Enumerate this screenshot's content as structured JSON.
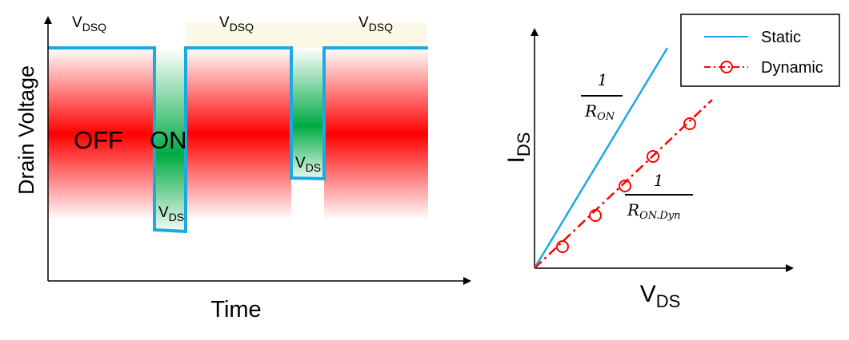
{
  "waveform": {
    "ylabel": "Drain Voltage",
    "xlabel": "Time",
    "vdsq_labels": [
      {
        "main": "V",
        "sub": "DSQ"
      },
      {
        "main": "V",
        "sub": "DSQ"
      },
      {
        "main": "V",
        "sub": "DSQ"
      }
    ],
    "vds_labels": [
      {
        "main": "V",
        "sub": "DS"
      },
      {
        "main": "V",
        "sub": "DS"
      }
    ],
    "state_off": "OFF",
    "state_on": "ON",
    "colors": {
      "trace": "#1ba9e2",
      "off_region": "#ff0000",
      "on_region": "#00aa44"
    }
  },
  "iv_plot": {
    "ylabel": {
      "main": "I",
      "sub": "DS"
    },
    "xlabel": {
      "main": "V",
      "sub": "DS"
    },
    "legend": {
      "static": "Static",
      "dynamic": "Dynamic"
    },
    "static_slope": {
      "num": "1",
      "den": "R",
      "den_sub": "ON"
    },
    "dynamic_slope": {
      "num": "1",
      "den": "R",
      "den_sub": "ON.Dyn"
    },
    "colors": {
      "static": "#1ba9e2",
      "dynamic": "#ff0000"
    }
  }
}
